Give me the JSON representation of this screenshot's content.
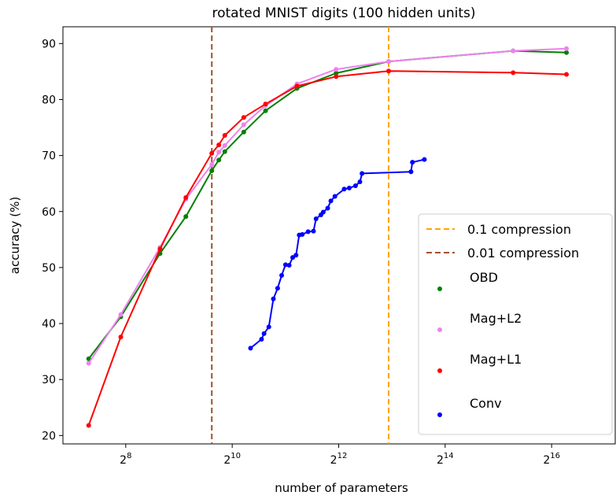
{
  "chart_data": {
    "type": "line",
    "title": "rotated MNIST digits (100 hidden units)",
    "xlabel": "number of parameters",
    "ylabel": "accuracy (%)",
    "x_scale": "log2",
    "xlim": [
      113,
      150000
    ],
    "ylim": [
      18.5,
      93
    ],
    "x_ticks": [
      {
        "value": 256,
        "base": "2",
        "exp": "8"
      },
      {
        "value": 1024,
        "base": "2",
        "exp": "10"
      },
      {
        "value": 4096,
        "base": "2",
        "exp": "12"
      },
      {
        "value": 16384,
        "base": "2",
        "exp": "14"
      },
      {
        "value": 65536,
        "base": "2",
        "exp": "16"
      }
    ],
    "y_ticks": [
      20,
      30,
      40,
      50,
      60,
      70,
      80,
      90
    ],
    "grid": false,
    "legend_position": "lower right",
    "reference_lines": [
      {
        "name": "0.1 compression",
        "x": 7850,
        "color": "#ffa500",
        "style": "dashed"
      },
      {
        "name": "0.01 compression",
        "x": 785,
        "color": "#a0522d",
        "style": "dashed"
      }
    ],
    "series": [
      {
        "name": "OBD",
        "color": "#008000",
        "x": [
          158,
          240,
          400,
          560,
          785,
          860,
          930,
          1190,
          1580,
          2380,
          3960,
          7850,
          39700,
          79500
        ],
        "y": [
          33.7,
          41.2,
          52.5,
          59.1,
          67.3,
          69.2,
          70.7,
          74.2,
          78.0,
          82.0,
          84.7,
          86.8,
          88.7,
          88.4
        ]
      },
      {
        "name": "Mag+L2",
        "color": "#ee82ee",
        "x": [
          158,
          240,
          400,
          560,
          785,
          860,
          930,
          1190,
          1580,
          2380,
          3960,
          7850,
          39700,
          79500
        ],
        "y": [
          32.9,
          41.6,
          53.6,
          62.2,
          68.4,
          70.6,
          71.8,
          75.5,
          78.9,
          82.8,
          85.4,
          86.8,
          88.7,
          89.1
        ]
      },
      {
        "name": "Mag+L1",
        "color": "#ff0000",
        "x": [
          158,
          240,
          400,
          560,
          785,
          860,
          930,
          1190,
          1580,
          2380,
          3960,
          7850,
          39700,
          79500
        ],
        "y": [
          21.8,
          37.6,
          53.3,
          62.5,
          70.4,
          71.9,
          73.6,
          76.8,
          79.2,
          82.4,
          84.1,
          85.1,
          84.8,
          84.5
        ]
      },
      {
        "name": "Conv",
        "color": "#0000ff",
        "x": [
          1300,
          1500,
          1550,
          1650,
          1750,
          1850,
          1950,
          2050,
          2150,
          2250,
          2350,
          2450,
          2550,
          2750,
          2950,
          3050,
          3250,
          3350,
          3550,
          3700,
          3900,
          4400,
          4700,
          5100,
          5400,
          5550,
          10500,
          10700,
          12500
        ],
        "y": [
          35.6,
          37.2,
          38.2,
          39.4,
          44.4,
          46.3,
          48.6,
          50.5,
          50.4,
          51.8,
          52.2,
          55.8,
          55.9,
          56.4,
          56.5,
          58.7,
          59.4,
          59.9,
          60.6,
          61.9,
          62.7,
          64.0,
          64.2,
          64.6,
          65.3,
          66.8,
          67.1,
          68.8,
          69.3
        ]
      }
    ]
  }
}
